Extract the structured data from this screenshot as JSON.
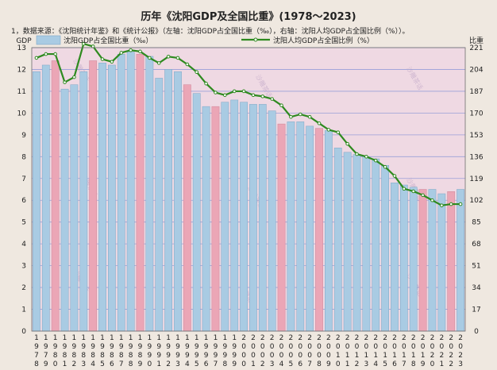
{
  "title": "历年《沈阳GDP及全国比重》(1978～2023)",
  "note": "1，数据来源：《沈阳统计年鉴》和《统计公报》（左轴：沈阳GDP占全国比重（‰），右轴：沈阳人均GDP占全国比例（%））。",
  "watermark": "沙雕茶话",
  "colors": {
    "plot_bg": "#efd9e3",
    "bar_normal": "#a9cbe3",
    "bar_normal_stroke": "#7fa7c6",
    "bar_highlight": "#eba6b6",
    "bar_highlight_stroke": "#cf8698",
    "line": "#2e8a1f",
    "grid": "#9a9fd8"
  },
  "chart_data": {
    "type": "bar+line",
    "left_axis_label": "GDP",
    "right_axis_label": "比重",
    "left_ticks": [
      0,
      1,
      2,
      3,
      4,
      5,
      6,
      7,
      8,
      9,
      10,
      11,
      12,
      13
    ],
    "right_ticks": [
      0,
      17,
      34,
      51,
      68,
      85,
      102,
      119,
      136,
      153,
      170,
      187,
      204,
      221
    ],
    "ylim_left": [
      0,
      13
    ],
    "ylim_right": [
      0,
      221
    ],
    "grid": true,
    "legend_position": "top",
    "years": [
      "1978",
      "1979",
      "1980",
      "1981",
      "1982",
      "1983",
      "1984",
      "1985",
      "1986",
      "1987",
      "1988",
      "1989",
      "1990",
      "1991",
      "1992",
      "1993",
      "1994",
      "1995",
      "1996",
      "1997",
      "1998",
      "1999",
      "2000",
      "2001",
      "2002",
      "2003",
      "2004",
      "2005",
      "2006",
      "2007",
      "2008",
      "2009",
      "2010",
      "2011",
      "2012",
      "2013",
      "2014",
      "2015",
      "2016",
      "2017",
      "2018",
      "2019",
      "2020",
      "2021",
      "2022",
      "2023"
    ],
    "highlight_years": [
      "1980",
      "1984",
      "1989",
      "1994",
      "1997",
      "2004",
      "2008",
      "2019",
      "2022"
    ],
    "series": [
      {
        "name": "沈阳GDP占全国比重（‰）",
        "axis": "left",
        "type": "bar",
        "values": [
          11.9,
          12.2,
          12.4,
          11.1,
          11.3,
          11.9,
          12.4,
          12.3,
          12.2,
          12.7,
          12.8,
          12.7,
          12.6,
          11.6,
          12.0,
          11.9,
          11.3,
          10.9,
          10.3,
          10.3,
          10.5,
          10.6,
          10.5,
          10.4,
          10.4,
          10.1,
          9.5,
          9.6,
          9.6,
          9.4,
          9.3,
          9.2,
          8.4,
          8.2,
          8.1,
          8.0,
          7.9,
          7.6,
          6.8,
          6.7,
          6.6,
          6.5,
          6.5,
          6.3,
          6.4,
          6.5
        ]
      },
      {
        "name": "沈阳人均GDP占全国比例（%）",
        "axis": "right",
        "type": "line",
        "values": [
          213,
          216,
          216,
          194,
          198,
          224,
          222,
          212,
          210,
          217,
          219,
          218,
          213,
          209,
          214,
          213,
          208,
          202,
          193,
          186,
          184,
          187,
          187,
          184,
          183,
          181,
          176,
          167,
          169,
          167,
          162,
          157,
          155,
          146,
          138,
          136,
          133,
          128,
          121,
          111,
          109,
          106,
          102,
          98,
          99,
          99
        ]
      }
    ]
  }
}
